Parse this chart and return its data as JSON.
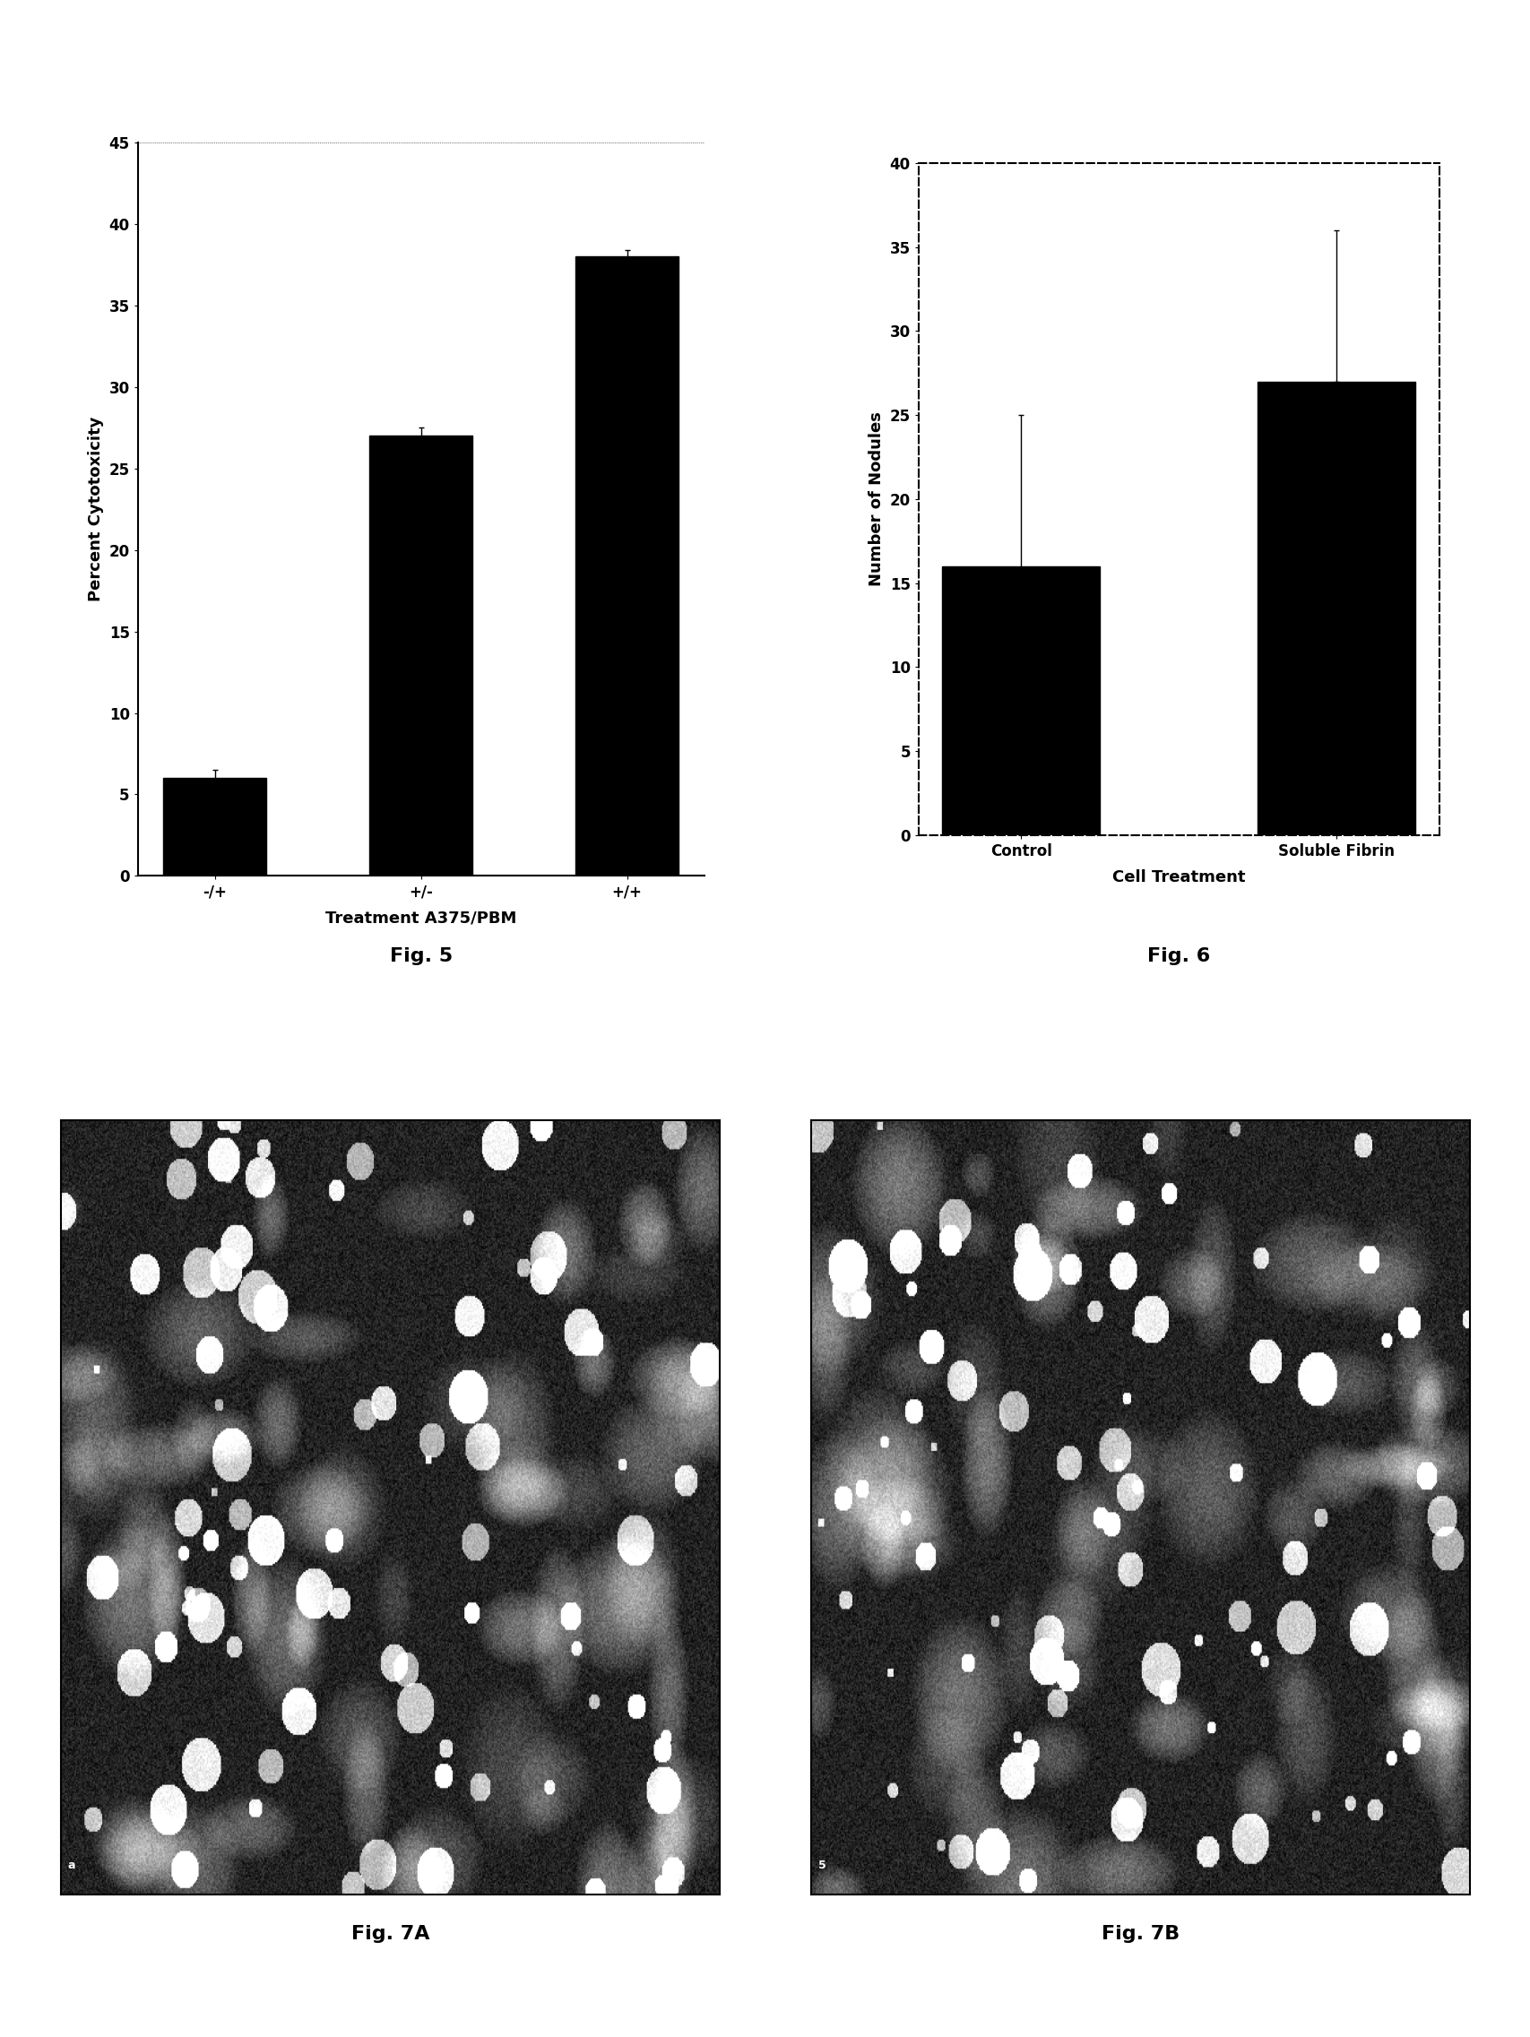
{
  "fig5": {
    "categories": [
      "-/+",
      "+/-",
      "+/+"
    ],
    "values": [
      6.0,
      27.0,
      38.0
    ],
    "yerr": [
      0.5,
      0.5,
      0.4
    ],
    "ylim": [
      0,
      45
    ],
    "yticks": [
      0,
      5,
      10,
      15,
      20,
      25,
      30,
      35,
      40,
      45
    ],
    "ylabel": "Percent Cytotoxicity",
    "xlabel": "Treatment A375/PBM",
    "title": "Fig. 5",
    "bar_color": "#000000",
    "bar_width": 0.5
  },
  "fig6": {
    "categories": [
      "Control",
      "Soluble Fibrin"
    ],
    "values": [
      16.0,
      27.0
    ],
    "yerr_low": [
      9.0,
      0.0
    ],
    "yerr_high": [
      9.0,
      9.0
    ],
    "ylim": [
      0,
      40
    ],
    "yticks": [
      0,
      5,
      10,
      15,
      20,
      25,
      30,
      35,
      40
    ],
    "ylabel": "Number of Nodules",
    "xlabel": "Cell Treatment",
    "title": "Fig. 6",
    "bar_color": "#000000",
    "bar_width": 0.5
  },
  "background_color": "#ffffff",
  "fig7a_label": "Fig. 7A",
  "fig7b_label": "Fig. 7B",
  "fig7a_corner": "a",
  "fig7b_corner": "5"
}
